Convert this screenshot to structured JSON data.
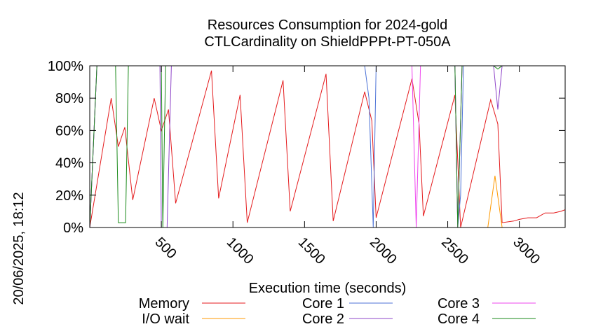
{
  "chart_data": {
    "type": "line",
    "title_line1": "Resources Consumption for 2024-gold",
    "title_line2": "CTLCardinality on ShieldPPPt-PT-050A",
    "xlabel": "Execution time (seconds)",
    "ylabel": "",
    "side_label": "20/06/2025, 18:12",
    "xlim": [
      0,
      3320
    ],
    "ylim": [
      0,
      100
    ],
    "x_ticks": [
      500,
      1000,
      1500,
      2000,
      2500,
      3000
    ],
    "y_ticks": [
      0,
      20,
      40,
      60,
      80,
      100
    ],
    "y_tick_labels": [
      "0%",
      "20%",
      "40%",
      "60%",
      "80%",
      "100%"
    ],
    "grid": false,
    "legend_position": "bottom",
    "series": [
      {
        "name": "Memory",
        "color": "#e41a1c",
        "points": [
          [
            0,
            0
          ],
          [
            150,
            80
          ],
          [
            200,
            50
          ],
          [
            245,
            62
          ],
          [
            300,
            17
          ],
          [
            450,
            80
          ],
          [
            500,
            60
          ],
          [
            550,
            73
          ],
          [
            600,
            15
          ],
          [
            850,
            97
          ],
          [
            900,
            18
          ],
          [
            1050,
            82
          ],
          [
            1100,
            3
          ],
          [
            1350,
            91
          ],
          [
            1400,
            10
          ],
          [
            1650,
            95
          ],
          [
            1700,
            4
          ],
          [
            1920,
            84
          ],
          [
            1970,
            66
          ],
          [
            2000,
            6
          ],
          [
            2250,
            92
          ],
          [
            2300,
            64
          ],
          [
            2330,
            7
          ],
          [
            2550,
            82
          ],
          [
            2590,
            0
          ],
          [
            2800,
            79
          ],
          [
            2850,
            64
          ],
          [
            2880,
            3
          ],
          [
            2960,
            4
          ],
          [
            3000,
            5
          ],
          [
            3060,
            6
          ],
          [
            3120,
            6
          ],
          [
            3180,
            9
          ],
          [
            3240,
            9
          ],
          [
            3290,
            10
          ],
          [
            3320,
            11
          ]
        ]
      },
      {
        "name": "I/O wait",
        "color": "#ff9900",
        "points": [
          [
            2780,
            0
          ],
          [
            2830,
            32
          ],
          [
            2880,
            0
          ]
        ]
      },
      {
        "name": "Core 1",
        "color": "#4c72d6",
        "points": [
          [
            0,
            0
          ],
          [
            50,
            100
          ],
          [
            1920,
            100
          ],
          [
            1950,
            80
          ],
          [
            1980,
            0
          ],
          [
            2000,
            100
          ],
          [
            2550,
            100
          ],
          [
            2570,
            0
          ],
          [
            2590,
            20
          ],
          [
            2610,
            100
          ],
          [
            3320,
            100
          ]
        ]
      },
      {
        "name": "Core 2",
        "color": "#8e44c8",
        "points": [
          [
            0,
            0
          ],
          [
            50,
            100
          ],
          [
            490,
            100
          ],
          [
            500,
            0
          ],
          [
            540,
            0
          ],
          [
            570,
            100
          ],
          [
            2550,
            100
          ],
          [
            2570,
            0
          ],
          [
            2600,
            100
          ],
          [
            2820,
            100
          ],
          [
            2850,
            73
          ],
          [
            2880,
            100
          ],
          [
            3320,
            100
          ]
        ]
      },
      {
        "name": "Core 3",
        "color": "#ee44ee",
        "points": [
          [
            0,
            0
          ],
          [
            50,
            100
          ],
          [
            2250,
            100
          ],
          [
            2280,
            0
          ],
          [
            2310,
            100
          ],
          [
            2550,
            100
          ],
          [
            2570,
            0
          ],
          [
            2600,
            100
          ],
          [
            3320,
            100
          ]
        ]
      },
      {
        "name": "Core 4",
        "color": "#1a8a1a",
        "points": [
          [
            0,
            0
          ],
          [
            50,
            100
          ],
          [
            180,
            100
          ],
          [
            200,
            3
          ],
          [
            250,
            3
          ],
          [
            270,
            100
          ],
          [
            500,
            100
          ],
          [
            510,
            0
          ],
          [
            530,
            100
          ],
          [
            2550,
            100
          ],
          [
            2570,
            0
          ],
          [
            2600,
            100
          ],
          [
            2820,
            100
          ],
          [
            2850,
            98
          ],
          [
            2880,
            100
          ],
          [
            3320,
            100
          ]
        ]
      }
    ]
  }
}
